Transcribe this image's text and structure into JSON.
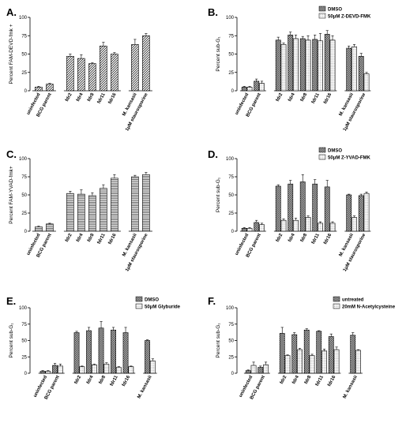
{
  "chart_data": [
    {
      "panel": "A.",
      "type": "bar",
      "ylabel": "Percent FAM-DEVD-fmk +",
      "ylim": [
        0,
        100
      ],
      "yticks": [
        0,
        25,
        50,
        75,
        100
      ],
      "categories": [
        "uninfected",
        "BCG parent",
        "fdr2",
        "fdr4",
        "fdr8",
        "fdr11",
        "fdr16",
        "M. kansasii",
        "1μM staurosporine"
      ],
      "groups": [
        [
          0,
          1
        ],
        [
          2,
          3,
          4,
          5,
          6
        ],
        [
          7,
          8
        ]
      ],
      "series": [
        {
          "values": [
            5,
            9,
            47,
            44,
            37,
            61,
            50,
            63,
            75
          ],
          "errors": [
            1,
            1,
            3,
            5,
            1,
            5,
            2,
            7,
            3
          ],
          "pattern": "diag-up"
        }
      ]
    },
    {
      "panel": "B.",
      "type": "bar",
      "ylabel": "Percent sub-G₁",
      "ylim": [
        0,
        100
      ],
      "yticks": [
        0,
        25,
        50,
        75,
        100
      ],
      "categories": [
        "uninfected",
        "BCG parent",
        "fdr2",
        "fdr4",
        "fdr8",
        "fdr11",
        "fdr16",
        "M. kansasii",
        "1μM staurosporine"
      ],
      "groups": [
        [
          0,
          1
        ],
        [
          2,
          3,
          4,
          5,
          6
        ],
        [
          7,
          8
        ]
      ],
      "legend_position": "top-right",
      "series": [
        {
          "name": "DMSO",
          "values": [
            5,
            13,
            69,
            76,
            71,
            70,
            77,
            58,
            47
          ],
          "errors": [
            1,
            3,
            4,
            4,
            3,
            6,
            5,
            3,
            4
          ],
          "pattern": "check"
        },
        {
          "name": "50μM Z-DEVD-FMK",
          "values": [
            5,
            10,
            63,
            71,
            69,
            68,
            69,
            60,
            23
          ],
          "errors": [
            1,
            3,
            2,
            5,
            6,
            10,
            6,
            3,
            2
          ],
          "pattern": "dots"
        }
      ]
    },
    {
      "panel": "C.",
      "type": "bar",
      "ylabel": "Percent FAM-YVAD-fmk+",
      "ylim": [
        0,
        100
      ],
      "yticks": [
        0,
        25,
        50,
        75,
        100
      ],
      "categories": [
        "uninfected",
        "BCG parent",
        "fdr2",
        "fdr4",
        "fdr8",
        "fdr11",
        "fdr16",
        "M. kansasii",
        "1μM staurosporine"
      ],
      "groups": [
        [
          0,
          1
        ],
        [
          2,
          3,
          4,
          5,
          6
        ],
        [
          7,
          8
        ]
      ],
      "series": [
        {
          "values": [
            6,
            10,
            52,
            51,
            49,
            59,
            73,
            75,
            78
          ],
          "errors": [
            1,
            1,
            3,
            6,
            4,
            5,
            5,
            2,
            3
          ],
          "pattern": "hlines"
        }
      ]
    },
    {
      "panel": "D.",
      "type": "bar",
      "ylabel": "Percent sub-G₁",
      "ylim": [
        0,
        100
      ],
      "yticks": [
        0,
        25,
        50,
        75,
        100
      ],
      "categories": [
        "uninfected",
        "BCG parent",
        "fdr2",
        "fdr4",
        "fdr8",
        "fdr11",
        "fdr16",
        "M. kansasii",
        "1μM staurosporine"
      ],
      "groups": [
        [
          0,
          1
        ],
        [
          2,
          3,
          4,
          5,
          6
        ],
        [
          7,
          8
        ]
      ],
      "legend_position": "top-right",
      "series": [
        {
          "name": "DMSO",
          "values": [
            4,
            12,
            62,
            65,
            68,
            65,
            61,
            50,
            49
          ],
          "errors": [
            1,
            3,
            2,
            5,
            10,
            6,
            9,
            1,
            2
          ],
          "pattern": "check"
        },
        {
          "name": "50μM Z-YVAD-FMK",
          "values": [
            4,
            9,
            15,
            15,
            19,
            11,
            11,
            19,
            52
          ],
          "errors": [
            1,
            2,
            2,
            3,
            2,
            2,
            2,
            2,
            2
          ],
          "pattern": "dots"
        }
      ]
    },
    {
      "panel": "E.",
      "type": "bar",
      "ylabel": "Percent sub-G₁",
      "ylim": [
        0,
        100
      ],
      "yticks": [
        0,
        25,
        50,
        75,
        100
      ],
      "categories": [
        "uninfected",
        "BCG parent",
        "fdr2",
        "fdr4",
        "fdr8",
        "fdr11",
        "fdr16",
        "M. kansasii"
      ],
      "groups": [
        [
          0,
          1
        ],
        [
          2,
          3,
          4,
          5,
          6
        ],
        [
          7
        ]
      ],
      "legend_position": "top-right",
      "series": [
        {
          "name": "DMSO",
          "values": [
            3,
            12,
            62,
            65,
            69,
            66,
            62,
            50
          ],
          "errors": [
            1,
            3,
            2,
            5,
            10,
            4,
            8,
            1
          ],
          "pattern": "check"
        },
        {
          "name": "50μM Glyburide",
          "values": [
            3,
            11,
            10,
            13,
            14,
            9,
            10,
            19
          ],
          "errors": [
            1,
            3,
            1,
            1,
            2,
            1,
            1,
            3
          ],
          "pattern": "dots"
        }
      ]
    },
    {
      "panel": "F.",
      "type": "bar",
      "ylabel": "Percent sub-G₁",
      "ylim": [
        0,
        100
      ],
      "yticks": [
        0,
        25,
        50,
        75,
        100
      ],
      "categories": [
        "uninfected",
        "BCG parent",
        "fdr2",
        "fdr4",
        "fdr8",
        "fdr11",
        "fdr16",
        "M. kansasii"
      ],
      "groups": [
        [
          0,
          1
        ],
        [
          2,
          3,
          4,
          5,
          6
        ],
        [
          7
        ]
      ],
      "legend_position": "top-right",
      "series": [
        {
          "name": "untreated",
          "values": [
            4,
            9,
            61,
            59,
            66,
            64,
            56,
            58
          ],
          "errors": [
            1,
            2,
            9,
            3,
            2,
            1,
            4,
            4
          ],
          "pattern": "check"
        },
        {
          "name": "20mM N-Acetylcysteine",
          "values": [
            12,
            13,
            27,
            36,
            27,
            34,
            36,
            35
          ],
          "errors": [
            5,
            4,
            1,
            2,
            2,
            3,
            4,
            1
          ],
          "pattern": "dots"
        }
      ]
    }
  ]
}
